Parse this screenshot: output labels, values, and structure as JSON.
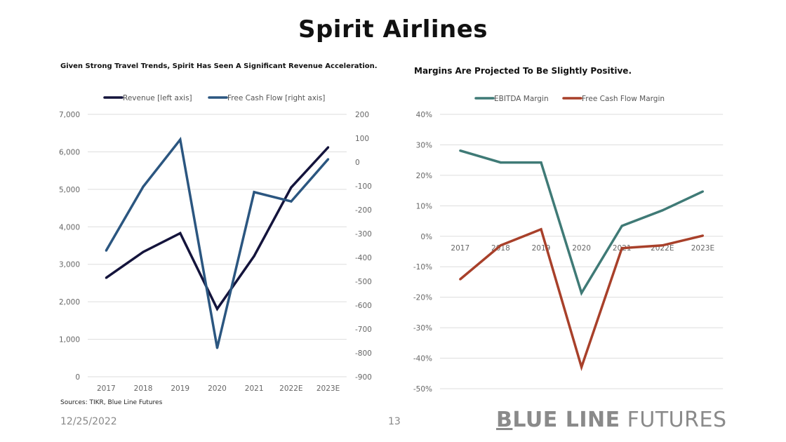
{
  "slide": {
    "title": "Spirit Airlines",
    "source": "Sources: TIKR, Blue Line Futures",
    "date": "12/25/2022",
    "page_number": "13",
    "brand_bold_first": "B",
    "brand_bold_rest": "LUE LINE",
    "brand_light": " FUTURES"
  },
  "colors": {
    "revenue": "#14143c",
    "fcf": "#2b5680",
    "ebitda_margin": "#3f7a76",
    "fcf_margin": "#a8402a",
    "grid": "#dddddd"
  },
  "chart_data": [
    {
      "type": "line",
      "title": "Given Strong Travel Trends, Spirit Has Seen A Significant Revenue Acceleration.",
      "legend_position": "top-center",
      "categories": [
        "2017",
        "2018",
        "2019",
        "2020",
        "2021",
        "2022E",
        "2023E"
      ],
      "y_left": {
        "ylim": [
          0,
          7000
        ],
        "ticks": [
          0,
          1000,
          2000,
          3000,
          4000,
          5000,
          6000,
          7000
        ],
        "tick_labels": [
          "0",
          "1,000",
          "2,000",
          "3,000",
          "4,000",
          "5,000",
          "6,000",
          "7,000"
        ]
      },
      "y_right": {
        "ylim": [
          -900,
          200
        ],
        "ticks": [
          200,
          100,
          0,
          -100,
          -200,
          -300,
          -400,
          -500,
          -600,
          -700,
          -800,
          -900
        ],
        "tick_labels": [
          "200",
          "100",
          "0",
          "-100",
          "-200",
          "-300",
          "-400",
          "-500",
          "-600",
          "-700",
          "-800",
          "-900"
        ]
      },
      "grid": true,
      "series": [
        {
          "name": "Revenue [left axis]",
          "axis": "left",
          "color_key": "revenue",
          "values": [
            2640,
            3330,
            3830,
            1810,
            3220,
            5050,
            6120
          ]
        },
        {
          "name": "Free Cash Flow [right axis]",
          "axis": "right",
          "color_key": "fcf",
          "values": [
            -371,
            -103,
            94,
            -779,
            -126,
            -165,
            12
          ]
        }
      ]
    },
    {
      "type": "line",
      "title": "Margins Are Projected To Be Slightly Positive.",
      "legend_position": "top-center",
      "categories": [
        "2017",
        "2018",
        "2019",
        "2020",
        "2021",
        "2022E",
        "2023E"
      ],
      "y_left": {
        "ylim": [
          -50,
          40
        ],
        "ticks": [
          40,
          30,
          20,
          10,
          0,
          -10,
          -20,
          -30,
          -40,
          -50
        ],
        "tick_labels": [
          "40%",
          "30%",
          "20%",
          "10%",
          "0%",
          "-10%",
          "-20%",
          "-30%",
          "-40%",
          "-50%"
        ]
      },
      "grid": true,
      "series": [
        {
          "name": "EBITDA Margin",
          "axis": "left",
          "color_key": "ebitda_margin",
          "values": [
            28.1,
            24.2,
            24.2,
            -18.6,
            3.4,
            8.5,
            14.7
          ]
        },
        {
          "name": "Free Cash Flow Margin",
          "axis": "left",
          "color_key": "fcf_margin",
          "values": [
            -14.1,
            -3.0,
            2.3,
            -42.9,
            -3.9,
            -3.0,
            0.2
          ]
        }
      ]
    }
  ]
}
